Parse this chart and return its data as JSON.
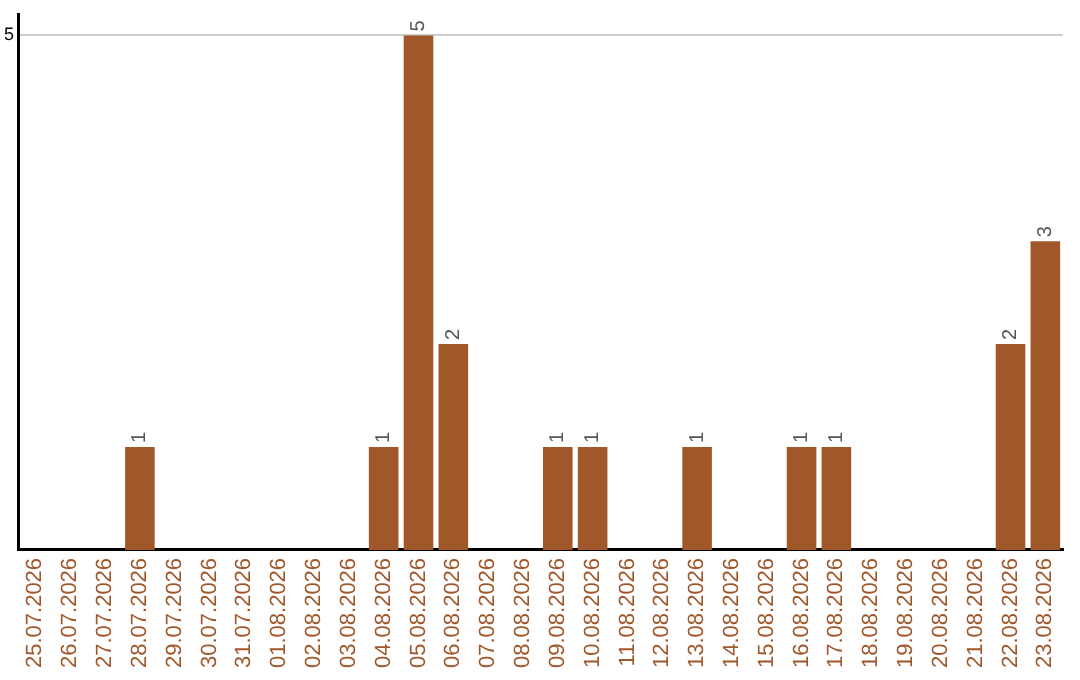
{
  "chart_data": {
    "type": "bar",
    "categories": [
      "25.07.2026",
      "26.07.2026",
      "27.07.2026",
      "28.07.2026",
      "29.07.2026",
      "30.07.2026",
      "31.07.2026",
      "01.08.2026",
      "02.08.2026",
      "03.08.2026",
      "04.08.2026",
      "05.08.2026",
      "06.08.2026",
      "07.08.2026",
      "08.08.2026",
      "09.08.2026",
      "10.08.2026",
      "11.08.2026",
      "12.08.2026",
      "13.08.2026",
      "14.08.2026",
      "15.08.2026",
      "16.08.2026",
      "17.08.2026",
      "18.08.2026",
      "19.08.2026",
      "20.08.2026",
      "21.08.2026",
      "22.08.2026",
      "23.08.2026"
    ],
    "values": [
      0,
      0,
      0,
      1,
      0,
      0,
      0,
      0,
      0,
      0,
      1,
      5,
      2,
      0,
      0,
      1,
      1,
      0,
      0,
      1,
      0,
      0,
      1,
      1,
      0,
      0,
      0,
      0,
      2,
      3
    ],
    "value_labels": [
      null,
      null,
      null,
      "1",
      null,
      null,
      null,
      null,
      null,
      null,
      "1",
      "5",
      "2",
      null,
      null,
      "1",
      "1",
      null,
      null,
      "1",
      null,
      null,
      "1",
      "1",
      null,
      null,
      null,
      null,
      "2",
      "3"
    ],
    "color": "#a0572a",
    "ylim": [
      0,
      5.2
    ],
    "yticks": [
      5
    ],
    "grid": "y",
    "legend": false
  }
}
